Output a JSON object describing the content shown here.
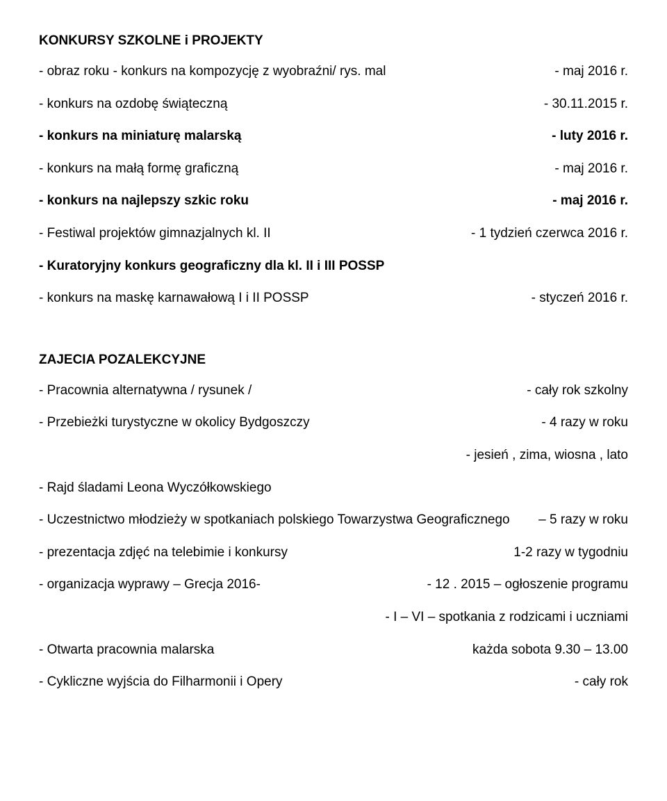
{
  "section1": {
    "title": "KONKURSY  SZKOLNE i PROJEKTY",
    "rows": [
      {
        "left": "- obraz roku - konkurs na kompozycję z wyobraźni/ rys. mal",
        "right": "- maj 2016 r.",
        "bold": false
      },
      {
        "left": "- konkurs na ozdobę  świąteczną",
        "right": "- 30.11.2015 r.",
        "bold": false
      },
      {
        "left": "- konkurs na miniaturę malarską",
        "right": "- luty 2016 r.",
        "bold": true
      },
      {
        "left": "- konkurs na małą formę graficzną",
        "right": "-  maj 2016 r.",
        "bold": false
      },
      {
        "left": "- konkurs na najlepszy szkic roku",
        "right": "- maj 2016 r.",
        "bold": true
      },
      {
        "left": "- Festiwal  projektów  gimnazjalnych kl. II",
        "right": "- 1 tydzień  czerwca 2016 r.",
        "bold": false
      }
    ],
    "single_lines": [
      "- Kuratoryjny konkurs geograficzny dla kl. II i III POSSP"
    ],
    "rows_after": [
      {
        "left": "- konkurs na maskę karnawałową  I i II POSSP",
        "right": "- styczeń 2016 r.",
        "bold": false
      }
    ]
  },
  "section2": {
    "title": "ZAJECIA POZALEKCYJNE",
    "rows": [
      {
        "left": "- Pracownia alternatywna / rysunek /",
        "right": "-  cały rok szkolny"
      },
      {
        "left": "- Przebieżki turystyczne w okolicy Bydgoszczy",
        "right": "-  4 razy w roku"
      },
      {
        "left": "",
        "right": "-  jesień , zima, wiosna , lato"
      }
    ],
    "single_lines": [
      "- Rajd śladami Leona Wyczółkowskiego"
    ],
    "rows_after": [
      {
        "left": "- Uczestnictwo młodzieży w spotkaniach polskiego Towarzystwa Geograficznego",
        "right": "– 5 razy w roku"
      },
      {
        "left": "- prezentacja zdjęć na telebimie i konkursy",
        "right": "1-2 razy w tygodniu"
      },
      {
        "left": "- organizacja wyprawy – Grecja 2016-",
        "right": "- 12 . 2015 – ogłoszenie programu"
      },
      {
        "left": "",
        "right": "- I – VI – spotkania z rodzicami i uczniami"
      },
      {
        "left": "-  Otwarta pracownia malarska",
        "right": "każda sobota 9.30 – 13.00"
      },
      {
        "left": "-  Cykliczne wyjścia do Filharmonii i Opery",
        "right": "-  cały rok"
      }
    ]
  }
}
